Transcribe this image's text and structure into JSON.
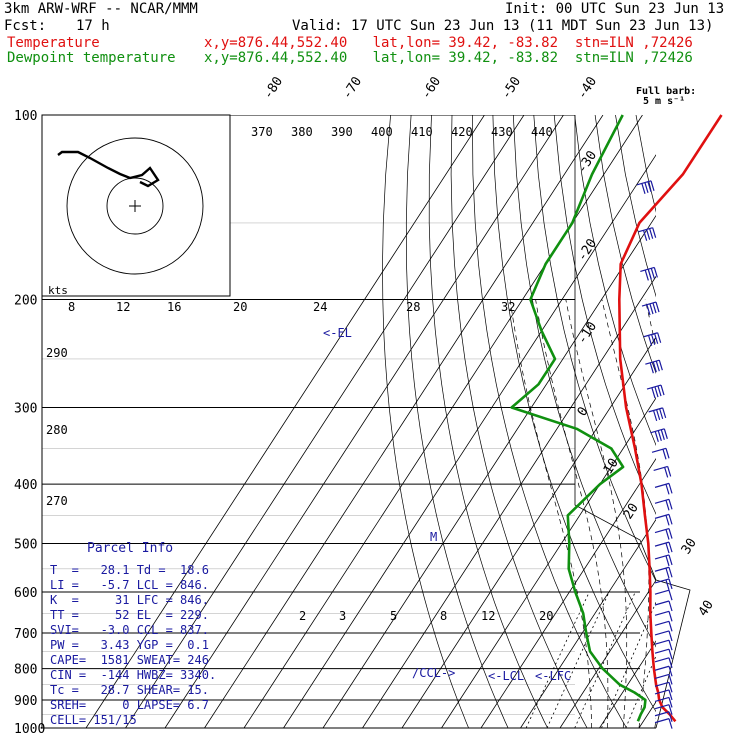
{
  "header": {
    "model": "3km ARW-WRF -- NCAR/MMM",
    "init": "Init: 00 UTC Sun 23 Jun 13",
    "fcst_label": "Fcst:",
    "fcst_value": "17 h",
    "valid": "Valid: 17 UTC Sun 23 Jun 13 (11 MDT Sun 23 Jun 13)",
    "temp_label": "Temperature",
    "dew_label": "Dewpoint temperature",
    "temp_loc": "x,y=876.44,552.40   lat,lon= 39.42, -83.82  stn=ILN ,72426",
    "dew_loc": "x,y=876.44,552.40   lat,lon= 39.42, -83.82  stn=ILN ,72426"
  },
  "barb_legend": {
    "line1": "Full barb:",
    "line2": "5 m s⁻¹"
  },
  "axes": {
    "pressure_labels": [
      "100",
      "200",
      "300",
      "400",
      "500",
      "600",
      "700",
      "800",
      "900",
      "1000"
    ],
    "isotherm_labels": [
      "-80",
      "-70",
      "-60",
      "-50",
      "-40",
      "-30",
      "-20",
      "-10",
      "0",
      "10",
      "20",
      "30",
      "40"
    ],
    "theta_labels": [
      "370",
      "380",
      "390",
      "400",
      "410",
      "420",
      "430",
      "440"
    ],
    "hodo_kts": "kts",
    "hodo_speed_labels": [
      "8",
      "12",
      "16",
      "20",
      "24",
      "28",
      "32"
    ],
    "theta_left_labels": [
      "290",
      "280",
      "270"
    ],
    "mixing_ratio_labels": [
      "2",
      "3",
      "5",
      "8",
      "12",
      "20"
    ]
  },
  "markers": {
    "el": "<-EL",
    "lcl": "<-LCL",
    "lfc": "<-LFC",
    "ccl": "/CCL->",
    "m": "M"
  },
  "parcel_info": {
    "title": "Parcel Info",
    "rows": [
      "T  =   28.1 Td =  18.6",
      "LI =   -5.7 LCL = 846.",
      "K  =     31 LFC = 846.",
      "TT =     52 EL  = 229.",
      "SVI=   -3.0 CCL = 837.",
      "PW =   3.43 YGP =  0.1",
      "CAPE=  1581 SWEAT= 246",
      "CIN =  -144 HWBZ= 3340.",
      "Tc =   28.7 SHEAR= 15.",
      "SREH=     0 LAPSE= 6.7",
      "CELL= 151/15"
    ]
  },
  "colors": {
    "temperature": "#e01010",
    "dewpoint": "#109010",
    "barbs": "#1a1aa0"
  },
  "chart_data": {
    "type": "line",
    "title": "",
    "xlabel": "",
    "ylabel": "",
    "y_axis": "pressure (hPa), log scale",
    "ylim": [
      1000,
      100
    ],
    "series": [
      {
        "name": "Temperature",
        "pressure": [
          975,
          950,
          925,
          900,
          875,
          850,
          800,
          750,
          700,
          650,
          600,
          550,
          500,
          450,
          400,
          350,
          300,
          250,
          200,
          175,
          150,
          125,
          100
        ],
        "values": [
          28.1,
          25.5,
          22.5,
          20.5,
          19.0,
          17.2,
          14.0,
          10.8,
          7.5,
          4.0,
          0.5,
          -3.5,
          -8.0,
          -13.5,
          -19.5,
          -27.0,
          -36.0,
          -45.5,
          -55.5,
          -61.0,
          -63.0,
          -60.0,
          -60.0
        ]
      },
      {
        "name": "Dewpoint temperature",
        "pressure": [
          975,
          950,
          925,
          900,
          875,
          850,
          800,
          750,
          700,
          650,
          600,
          550,
          500,
          450,
          400,
          375,
          350,
          325,
          300,
          275,
          250,
          225,
          200,
          175,
          150,
          125,
          100
        ],
        "values": [
          18.6,
          18.2,
          18.0,
          17.0,
          13.0,
          8.0,
          1.0,
          -5.0,
          -9.0,
          -13.0,
          -18.5,
          -24.0,
          -28.0,
          -33.0,
          -30.0,
          -27.0,
          -33.0,
          -45.0,
          -65.0,
          -62.0,
          -62.0,
          -70.0,
          -78.0,
          -80.0,
          -80.0,
          -83.0,
          -85.0
        ]
      }
    ]
  }
}
